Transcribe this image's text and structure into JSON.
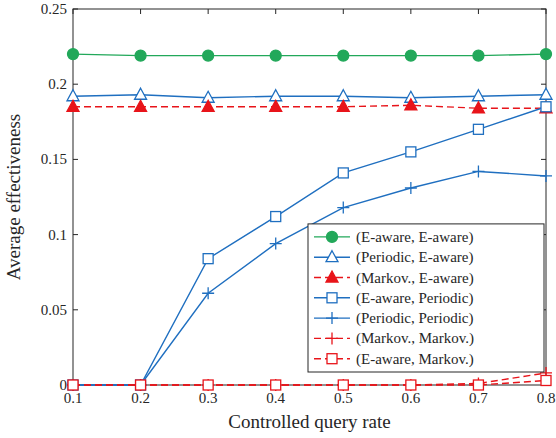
{
  "chart_data": {
    "type": "line",
    "x_label": "Controlled query rate",
    "y_label": "Average effectiveness",
    "x": [
      0.1,
      0.2,
      0.3,
      0.4,
      0.5,
      0.6,
      0.7,
      0.8
    ],
    "xlim": [
      0.1,
      0.8
    ],
    "xticks": [
      0.1,
      0.2,
      0.3,
      0.4,
      0.5,
      0.6,
      0.7,
      0.8
    ],
    "ylim": [
      0,
      0.25
    ],
    "yticks": [
      0,
      0.05,
      0.1,
      0.15,
      0.2,
      0.25
    ],
    "grid": false,
    "legend": "lower right",
    "series": [
      {
        "name": "(E-aware, E-aware)",
        "color": "#22a85a",
        "marker": "circle",
        "line_style": "solid",
        "values": [
          0.22,
          0.219,
          0.219,
          0.219,
          0.219,
          0.219,
          0.219,
          0.22
        ]
      },
      {
        "name": "(Periodic, E-aware)",
        "color": "#1f6fc0",
        "marker": "triangle-open",
        "line_style": "solid",
        "values": [
          0.192,
          0.193,
          0.191,
          0.192,
          0.192,
          0.191,
          0.192,
          0.193
        ]
      },
      {
        "name": "(Markov., E-aware)",
        "color": "#e8141a",
        "marker": "triangle",
        "line_style": "dashed",
        "values": [
          0.185,
          0.185,
          0.185,
          0.185,
          0.185,
          0.186,
          0.184,
          0.184
        ]
      },
      {
        "name": "(E-aware, Periodic)",
        "color": "#1f6fc0",
        "marker": "square-open",
        "line_style": "solid",
        "values": [
          0,
          0,
          0.084,
          0.112,
          0.141,
          0.155,
          0.17,
          0.185
        ]
      },
      {
        "name": "(Periodic, Periodic)",
        "color": "#1f6fc0",
        "marker": "plus",
        "line_style": "solid",
        "values": [
          0,
          0,
          0.061,
          0.094,
          0.118,
          0.131,
          0.142,
          0.139
        ]
      },
      {
        "name": "(Markov., Markov.)",
        "color": "#e8141a",
        "marker": "plus",
        "line_style": "dashed",
        "values": [
          0,
          0,
          0,
          0,
          0,
          0,
          0.001,
          0.008
        ]
      },
      {
        "name": "(E-aware, Markov.)",
        "color": "#e8141a",
        "marker": "square-open",
        "line_style": "dashed",
        "values": [
          0,
          0,
          0,
          0,
          0,
          0,
          0,
          0.003
        ]
      }
    ]
  }
}
